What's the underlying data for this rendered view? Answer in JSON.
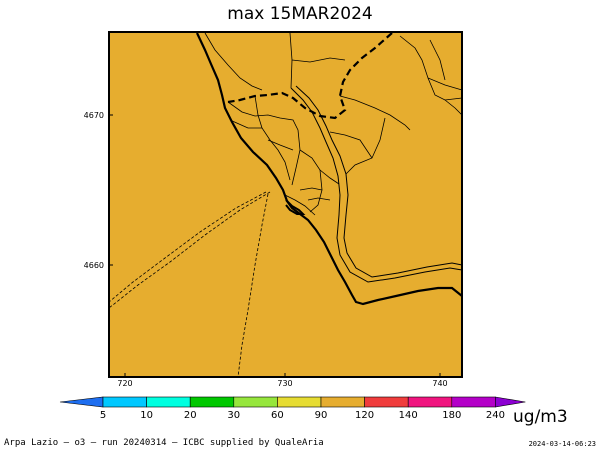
{
  "title": "max 15MAR2024",
  "fill_color": "#e6ad2f",
  "axes": {
    "x_ticks": [
      "720",
      "730",
      "740"
    ],
    "y_ticks": [
      "4670",
      "4660"
    ]
  },
  "colorbar": {
    "labels": [
      "5",
      "10",
      "20",
      "30",
      "60",
      "90",
      "120",
      "140",
      "180",
      "240"
    ],
    "colors": [
      "#1e6ef0",
      "#00c8ff",
      "#00ffe0",
      "#00c800",
      "#96e63c",
      "#e6dc32",
      "#e6ad2f",
      "#f03c3c",
      "#f0147f",
      "#b400c8",
      "#8c00d2"
    ],
    "units": "ug/m3"
  },
  "footer": {
    "caption": "Arpa Lazio — o3 — run 20240314 — ICBC supplied by QualeAria",
    "timestamp": "2024-03-14-06:23"
  }
}
